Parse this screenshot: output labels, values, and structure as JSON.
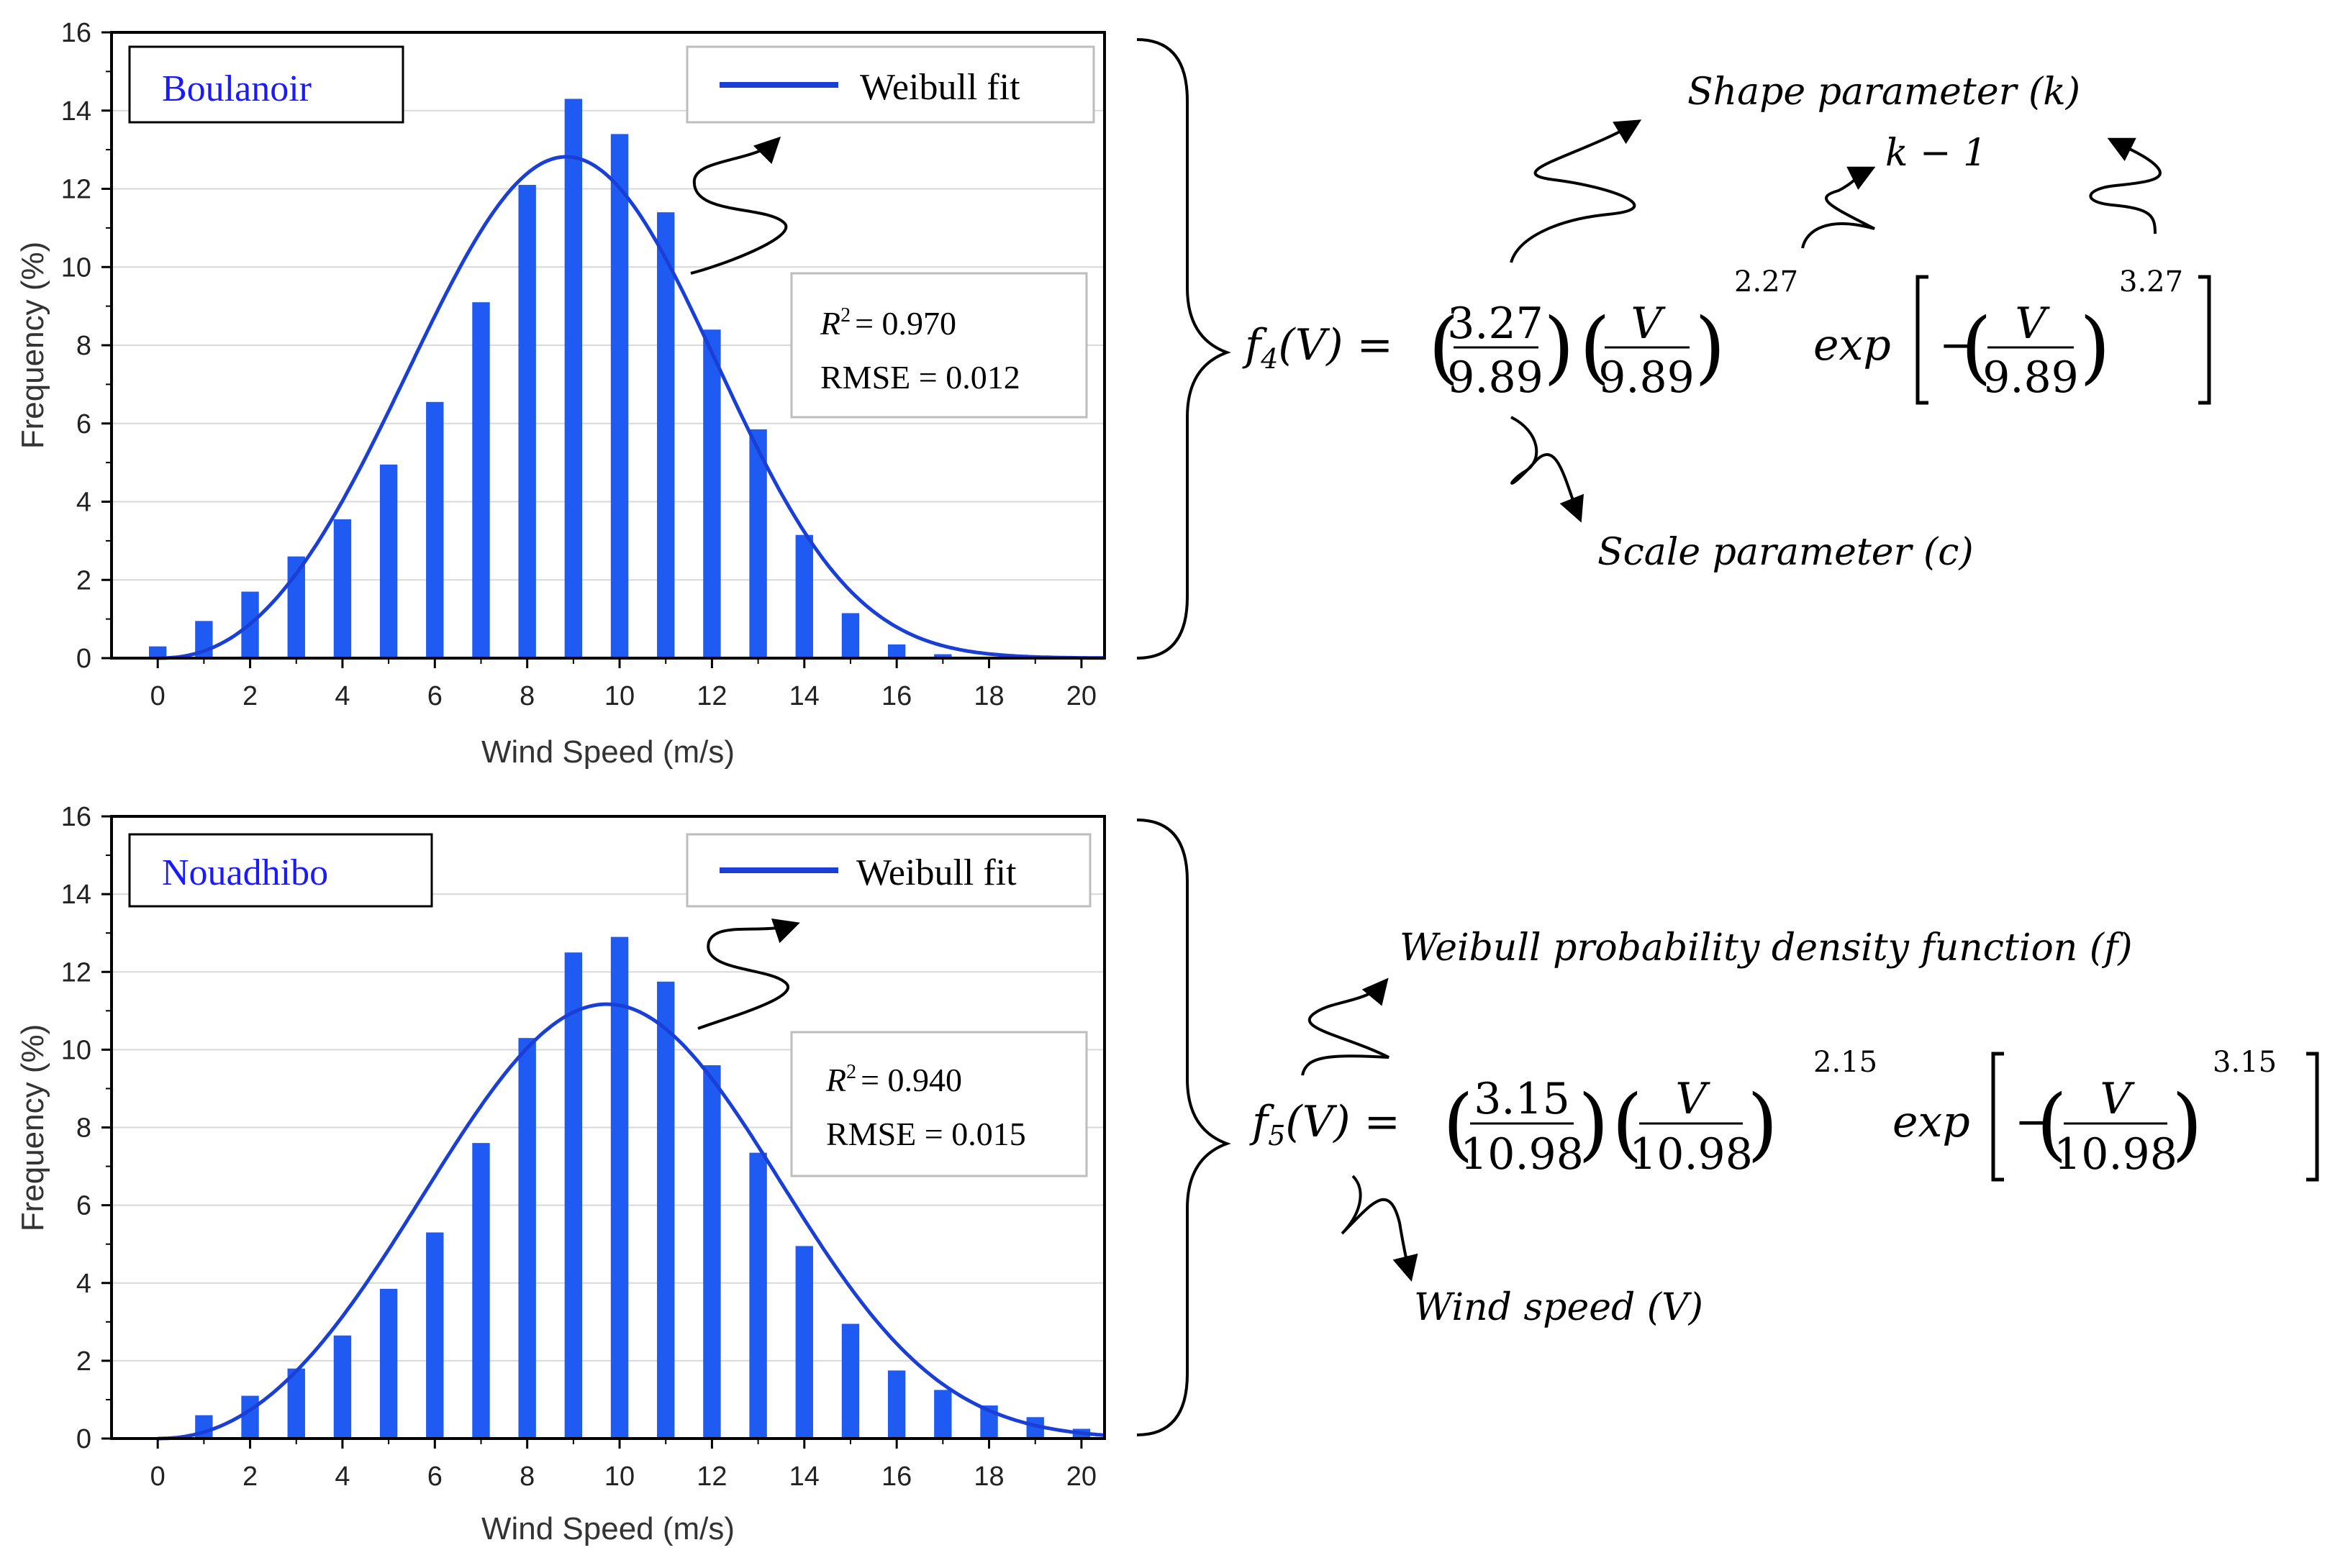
{
  "colors": {
    "bar": "#1f5bf2",
    "fit": "#1a3fd6",
    "station": "#1a1aff",
    "axis": "#000000",
    "grid": "#d9d9d9"
  },
  "chart_data": [
    {
      "type": "bar",
      "station": "Boulanoir",
      "legend": "Weibull fit",
      "r2_label": "R",
      "r2_exp": "2",
      "r2_value": "= 0.970",
      "rmse": "RMSE = 0.012",
      "xlabel": "Wind Speed (m/s)",
      "ylabel": "Frequency (%)",
      "xlim": [
        -1,
        20.5
      ],
      "ylim": [
        0,
        16
      ],
      "xticks": [
        "0",
        "2",
        "4",
        "6",
        "8",
        "10",
        "12",
        "14",
        "16",
        "18",
        "20"
      ],
      "yticks": [
        "0",
        "2",
        "4",
        "6",
        "8",
        "10",
        "12",
        "14",
        "16"
      ],
      "grid": true,
      "x": [
        0,
        1,
        2,
        3,
        4,
        5,
        6,
        7,
        8,
        9,
        10,
        11,
        12,
        13,
        14,
        15,
        16,
        17
      ],
      "values": [
        0.3,
        0.95,
        1.7,
        2.6,
        3.55,
        4.95,
        6.55,
        9.1,
        12.1,
        14.3,
        13.4,
        11.4,
        8.4,
        5.85,
        3.15,
        1.15,
        0.35,
        0.1
      ],
      "fit": {
        "k": 3.27,
        "c": 9.89
      }
    },
    {
      "type": "bar",
      "station": "Nouadhibo",
      "legend": "Weibull fit",
      "r2_label": "R",
      "r2_exp": "2",
      "r2_value": "= 0.940",
      "rmse": "RMSE = 0.015",
      "xlabel": "Wind Speed (m/s)",
      "ylabel": "Frequency (%)",
      "xlim": [
        -1,
        20.5
      ],
      "ylim": [
        0,
        16
      ],
      "xticks": [
        "0",
        "2",
        "4",
        "6",
        "8",
        "10",
        "12",
        "14",
        "16",
        "18",
        "20"
      ],
      "yticks": [
        "0",
        "2",
        "4",
        "6",
        "8",
        "10",
        "12",
        "14",
        "16"
      ],
      "grid": true,
      "x": [
        1,
        2,
        3,
        4,
        5,
        6,
        7,
        8,
        9,
        10,
        11,
        12,
        13,
        14,
        15,
        16,
        17,
        18,
        19,
        20
      ],
      "values": [
        0.6,
        1.1,
        1.8,
        2.65,
        3.85,
        5.3,
        7.6,
        10.3,
        12.5,
        12.9,
        11.75,
        9.6,
        7.35,
        4.95,
        2.95,
        1.75,
        1.25,
        0.85,
        0.55,
        0.25
      ],
      "fit": {
        "k": 3.15,
        "c": 10.98
      }
    }
  ],
  "equations": {
    "eq1": {
      "lhs": "f",
      "lhs_sub": "4",
      "lhs_arg": "(V) =",
      "k": "3.27",
      "c": "9.89",
      "var": "V",
      "exp_outer": "2.27",
      "exp_inner": "3.27",
      "exp_word": "exp",
      "minus": "−",
      "ann_shape": "Shape parameter (k)",
      "ann_km1": "k − 1",
      "ann_scale": "Scale parameter (c)"
    },
    "eq2": {
      "lhs": "f",
      "lhs_sub": "5",
      "lhs_arg": "(V) =",
      "k": "3.15",
      "c": "10.98",
      "var": "V",
      "exp_outer": "2.15",
      "exp_inner": "3.15",
      "exp_word": "exp",
      "minus": "−",
      "ann_pdf": "Weibull probability density function (f)",
      "ann_wind": "Wind speed (V)"
    }
  }
}
